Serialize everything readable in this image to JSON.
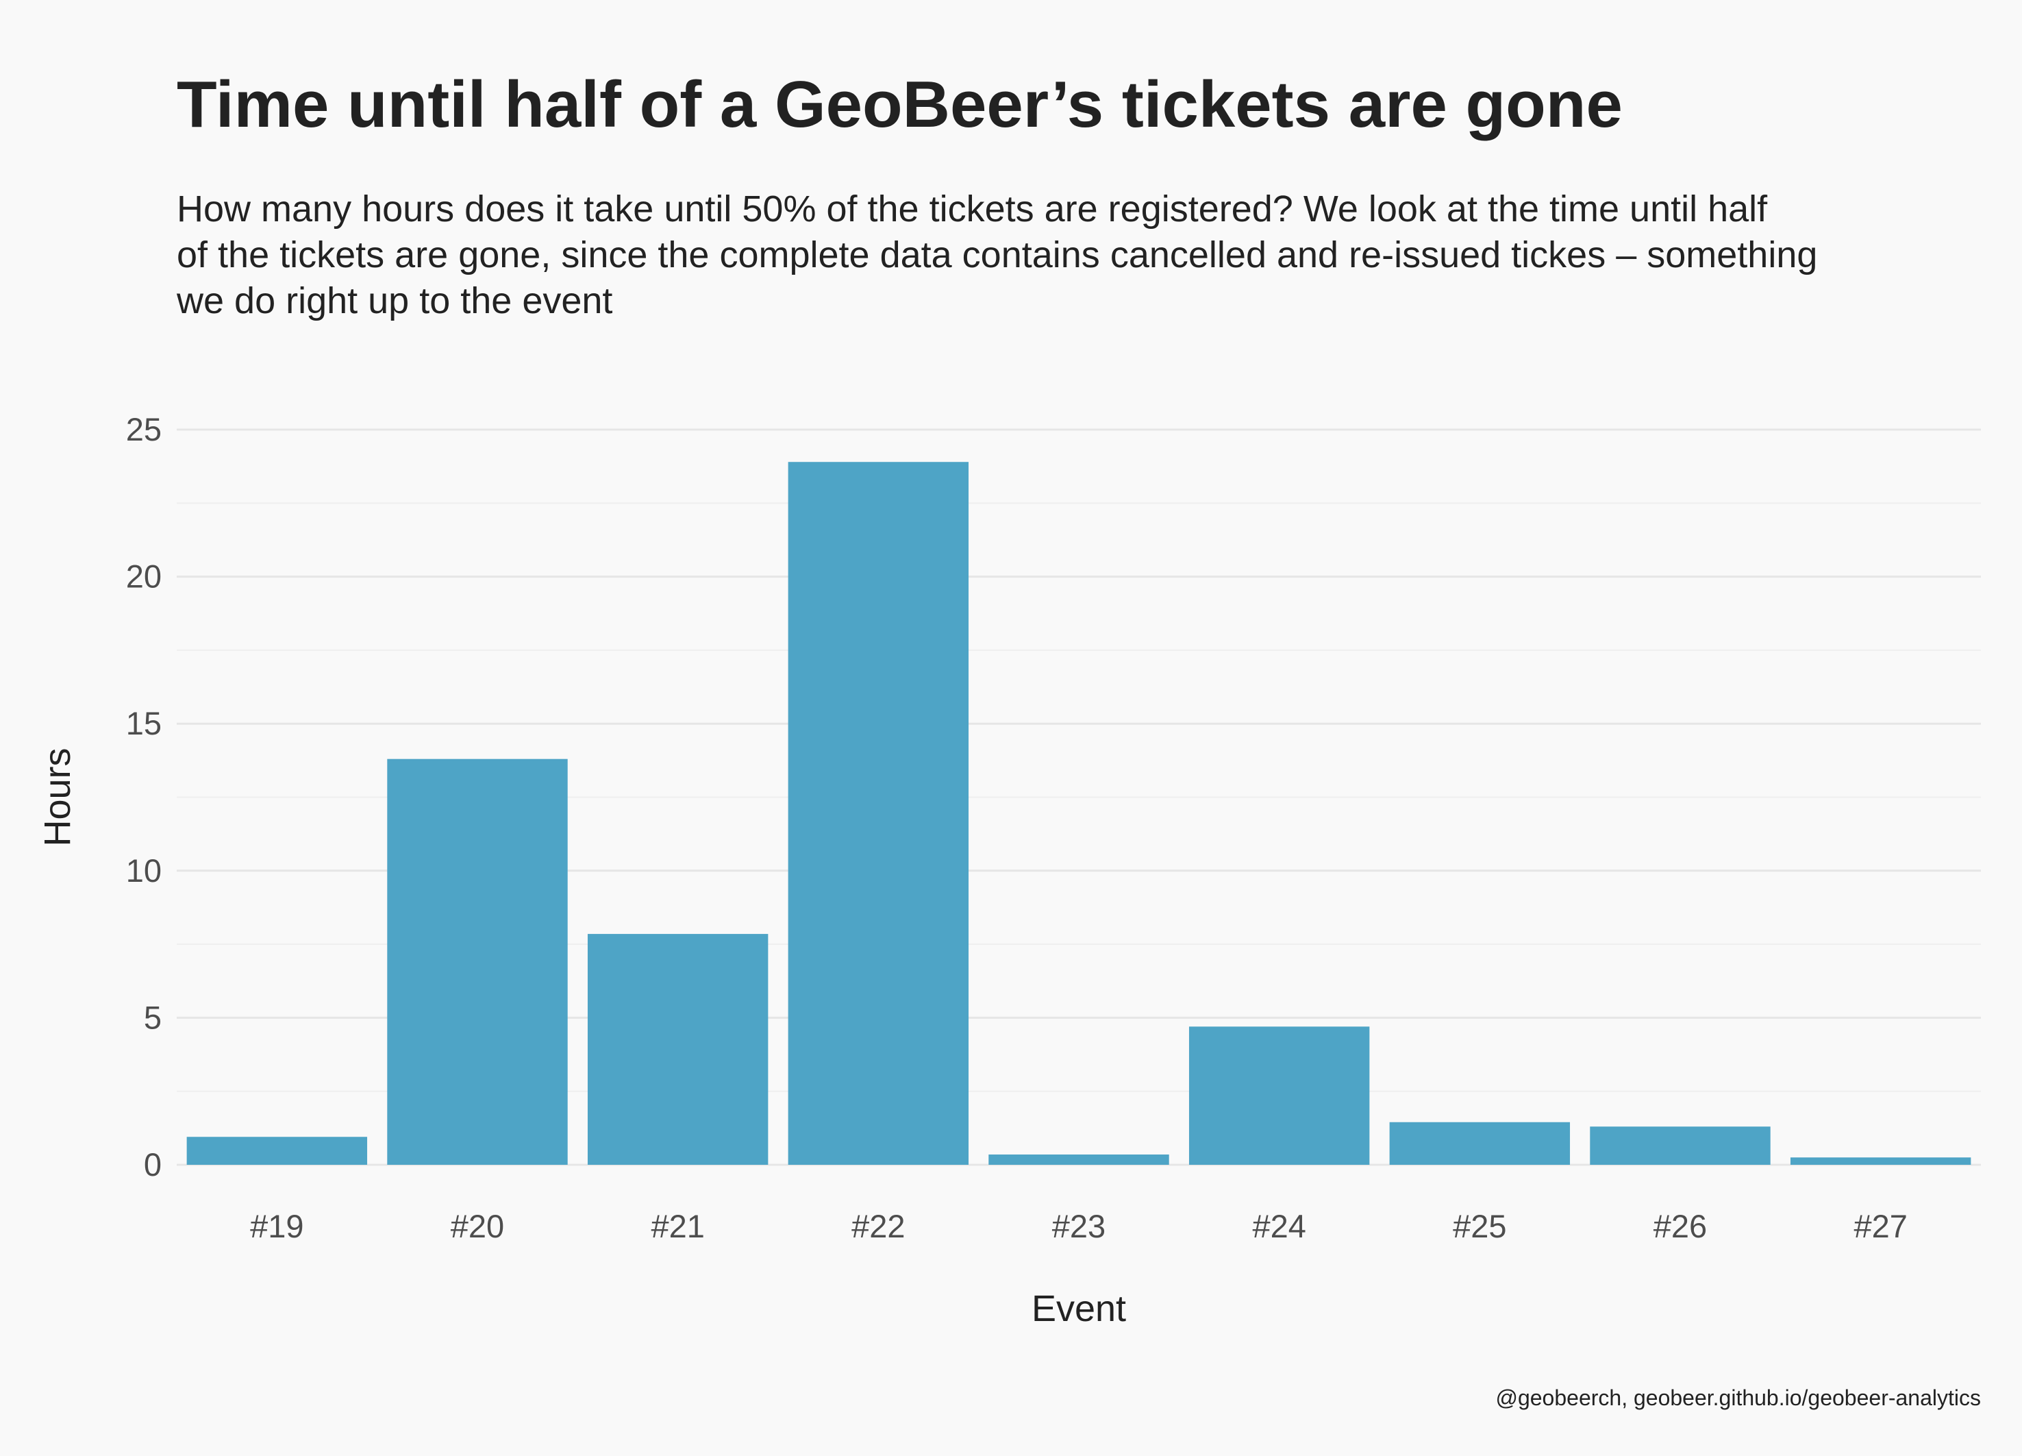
{
  "title": "Time until half of a GeoBeer’s tickets are gone",
  "subtitle": [
    "How many hours does it take until 50% of the tickets are registered? We look at the time until half",
    "of the tickets are gone, since the complete data contains cancelled and re-issued tickes – something",
    "we do right up to the event"
  ],
  "caption": "@geobeerch, geobeer.github.io/geobeer-analytics",
  "colors": {
    "bar": "#4ea4c6",
    "grid": "#e6e6e6",
    "background": "#f9f9f9"
  },
  "chart_data": {
    "type": "bar",
    "title": "Time until half of a GeoBeer’s tickets are gone",
    "xlabel": "Event",
    "ylabel": "Hours",
    "categories": [
      "#19",
      "#20",
      "#21",
      "#22",
      "#23",
      "#24",
      "#25",
      "#26",
      "#27"
    ],
    "values": [
      0.95,
      13.8,
      7.85,
      23.9,
      0.35,
      4.7,
      1.45,
      1.3,
      0.25
    ],
    "ylim": [
      0,
      25
    ],
    "yticks": [
      0,
      5,
      10,
      15,
      20,
      25
    ],
    "grid": true,
    "legend": "none"
  }
}
